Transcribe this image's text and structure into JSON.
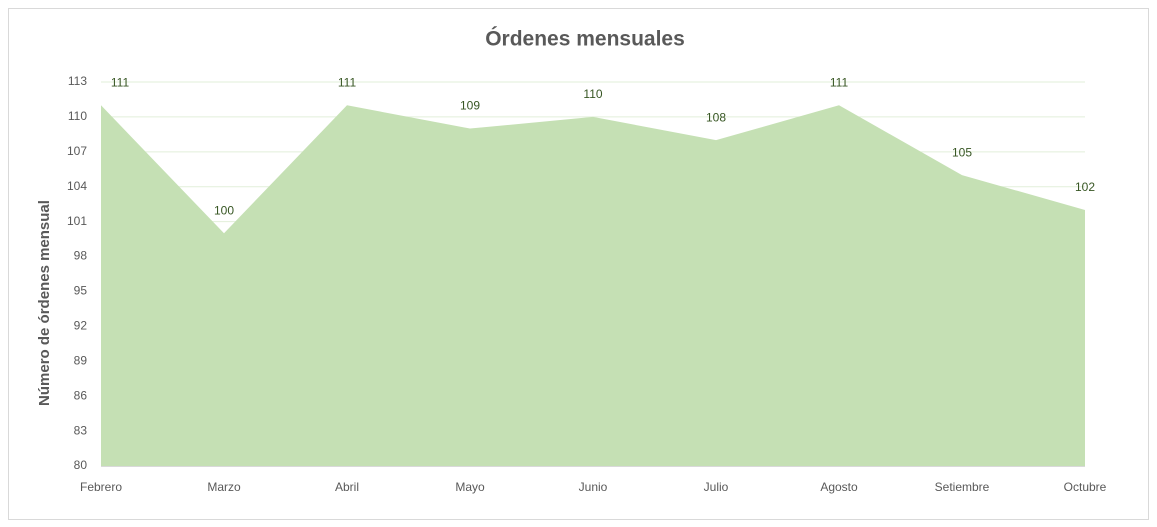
{
  "chart_data": {
    "type": "area",
    "title": "Órdenes mensuales",
    "y_label": "Número de órdenes mensual",
    "categories": [
      "Febrero",
      "Marzo",
      "Abril",
      "Mayo",
      "Junio",
      "Julio",
      "Agosto",
      "Setiembre",
      "Octubre"
    ],
    "values": [
      111,
      100,
      111,
      109,
      110,
      108,
      111,
      105,
      102
    ],
    "color": "#c5e0b4",
    "label_color": "#375623",
    "ylim": [
      80,
      113
    ],
    "yticks": [
      80,
      83,
      86,
      89,
      92,
      95,
      98,
      101,
      104,
      107,
      110,
      113
    ],
    "grid": true
  }
}
